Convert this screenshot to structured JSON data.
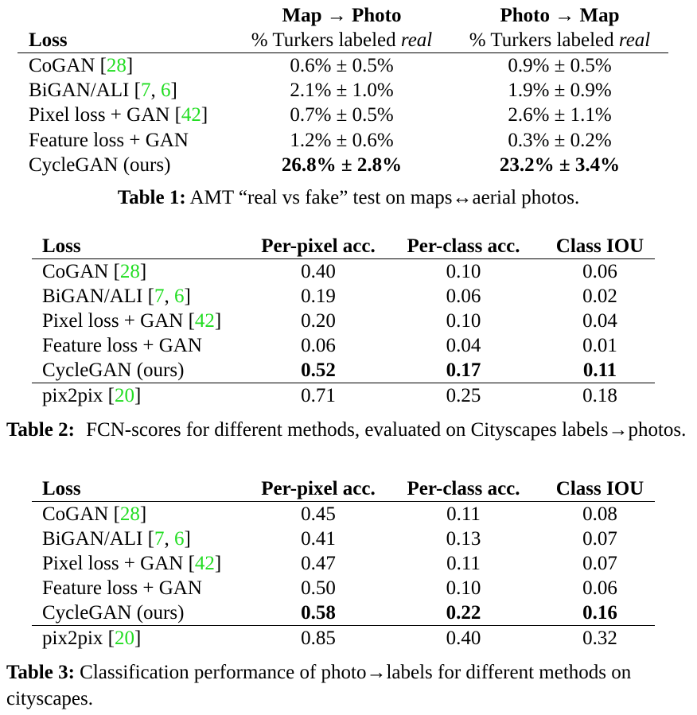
{
  "table1": {
    "group_headers": [
      "Map → Photo",
      "Photo → Map"
    ],
    "column_headers": [
      "Loss",
      "% Turkers labeled",
      "real",
      "% Turkers labeled",
      "real"
    ],
    "rows": [
      {
        "method": "CoGAN",
        "ref": "28",
        "map_to_photo": "0.6% ± 0.5%",
        "photo_to_map": "0.9% ± 0.5%"
      },
      {
        "method": "BiGAN/ALI",
        "ref": "7, 6",
        "map_to_photo": "2.1% ± 1.0%",
        "photo_to_map": "1.9% ± 0.9%"
      },
      {
        "method": "Pixel loss + GAN",
        "ref": "42",
        "map_to_photo": "0.7% ± 0.5%",
        "photo_to_map": "2.6% ± 1.1%"
      },
      {
        "method": "Feature loss + GAN",
        "ref": "",
        "map_to_photo": "1.2% ± 0.6%",
        "photo_to_map": "0.3% ± 0.2%"
      },
      {
        "method": "CycleGAN (ours)",
        "ref": "",
        "map_to_photo": "26.8% ± 2.8%",
        "photo_to_map": "23.2% ± 3.4%"
      }
    ],
    "caption_label": "Table 1:",
    "caption_text": "AMT “real vs fake” test on maps↔aerial photos."
  },
  "table2": {
    "headers": [
      "Loss",
      "Per-pixel acc.",
      "Per-class acc.",
      "Class IOU"
    ],
    "rows": [
      {
        "method": "CoGAN",
        "ref": "28",
        "values": [
          "0.40",
          "0.10",
          "0.06"
        ]
      },
      {
        "method": "BiGAN/ALI",
        "ref": "7, 6",
        "values": [
          "0.19",
          "0.06",
          "0.02"
        ]
      },
      {
        "method": "Pixel loss + GAN",
        "ref": "42",
        "values": [
          "0.20",
          "0.10",
          "0.04"
        ]
      },
      {
        "method": "Feature loss + GAN",
        "ref": "",
        "values": [
          "0.06",
          "0.04",
          "0.01"
        ]
      },
      {
        "method": "CycleGAN (ours)",
        "ref": "",
        "values": [
          "0.52",
          "0.17",
          "0.11"
        ]
      },
      {
        "method": "pix2pix",
        "ref": "20",
        "values": [
          "0.71",
          "0.25",
          "0.18"
        ]
      }
    ],
    "caption_label": "Table 2:",
    "caption_text": "FCN-scores for different methods, evaluated on Cityscapes labels→photos."
  },
  "table3": {
    "headers": [
      "Loss",
      "Per-pixel acc.",
      "Per-class acc.",
      "Class IOU"
    ],
    "rows": [
      {
        "method": "CoGAN",
        "ref": "28",
        "values": [
          "0.45",
          "0.11",
          "0.08"
        ]
      },
      {
        "method": "BiGAN/ALI",
        "ref": "7, 6",
        "values": [
          "0.41",
          "0.13",
          "0.07"
        ]
      },
      {
        "method": "Pixel loss + GAN",
        "ref": "42",
        "values": [
          "0.47",
          "0.11",
          "0.07"
        ]
      },
      {
        "method": "Feature loss + GAN",
        "ref": "",
        "values": [
          "0.50",
          "0.10",
          "0.06"
        ]
      },
      {
        "method": "CycleGAN (ours)",
        "ref": "",
        "values": [
          "0.58",
          "0.22",
          "0.16"
        ]
      },
      {
        "method": "pix2pix",
        "ref": "20",
        "values": [
          "0.85",
          "0.40",
          "0.32"
        ]
      }
    ],
    "caption_label": "Table 3:",
    "caption_text": "Classification performance of photo→labels for different methods on cityscapes."
  },
  "colors": {
    "citation": "#22dd22",
    "text": "#000000"
  }
}
